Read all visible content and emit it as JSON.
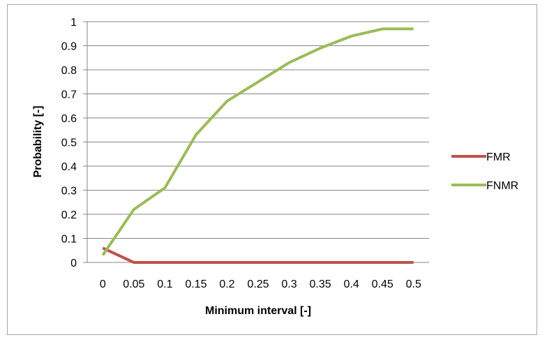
{
  "chart_data": {
    "type": "line",
    "x": [
      0,
      0.05,
      0.1,
      0.15,
      0.2,
      0.25,
      0.3,
      0.35,
      0.4,
      0.45,
      0.5
    ],
    "x_tick_labels": [
      "0",
      "0.05",
      "0.1",
      "0.15",
      "0.2",
      "0.25",
      "0.3",
      "0.35",
      "0.4",
      "0.45",
      "0.5"
    ],
    "y_tick_labels": [
      "0",
      "0.1",
      "0.2",
      "0.3",
      "0.4",
      "0.5",
      "0.6",
      "0.7",
      "0.8",
      "0.9",
      "1"
    ],
    "ylim": [
      0,
      1
    ],
    "xlabel": "Minimum interval [-]",
    "ylabel": "Probability [-]",
    "grid": "horizontal",
    "legend_position": "right",
    "series": [
      {
        "name": "FMR",
        "color": "#c0504d",
        "values": [
          0.06,
          0,
          0,
          0,
          0,
          0,
          0,
          0,
          0,
          0,
          0
        ]
      },
      {
        "name": "FNMR",
        "color": "#9bbb59",
        "values": [
          0.03,
          0.22,
          0.31,
          0.53,
          0.67,
          0.75,
          0.83,
          0.89,
          0.94,
          0.97,
          0.97
        ]
      }
    ]
  }
}
